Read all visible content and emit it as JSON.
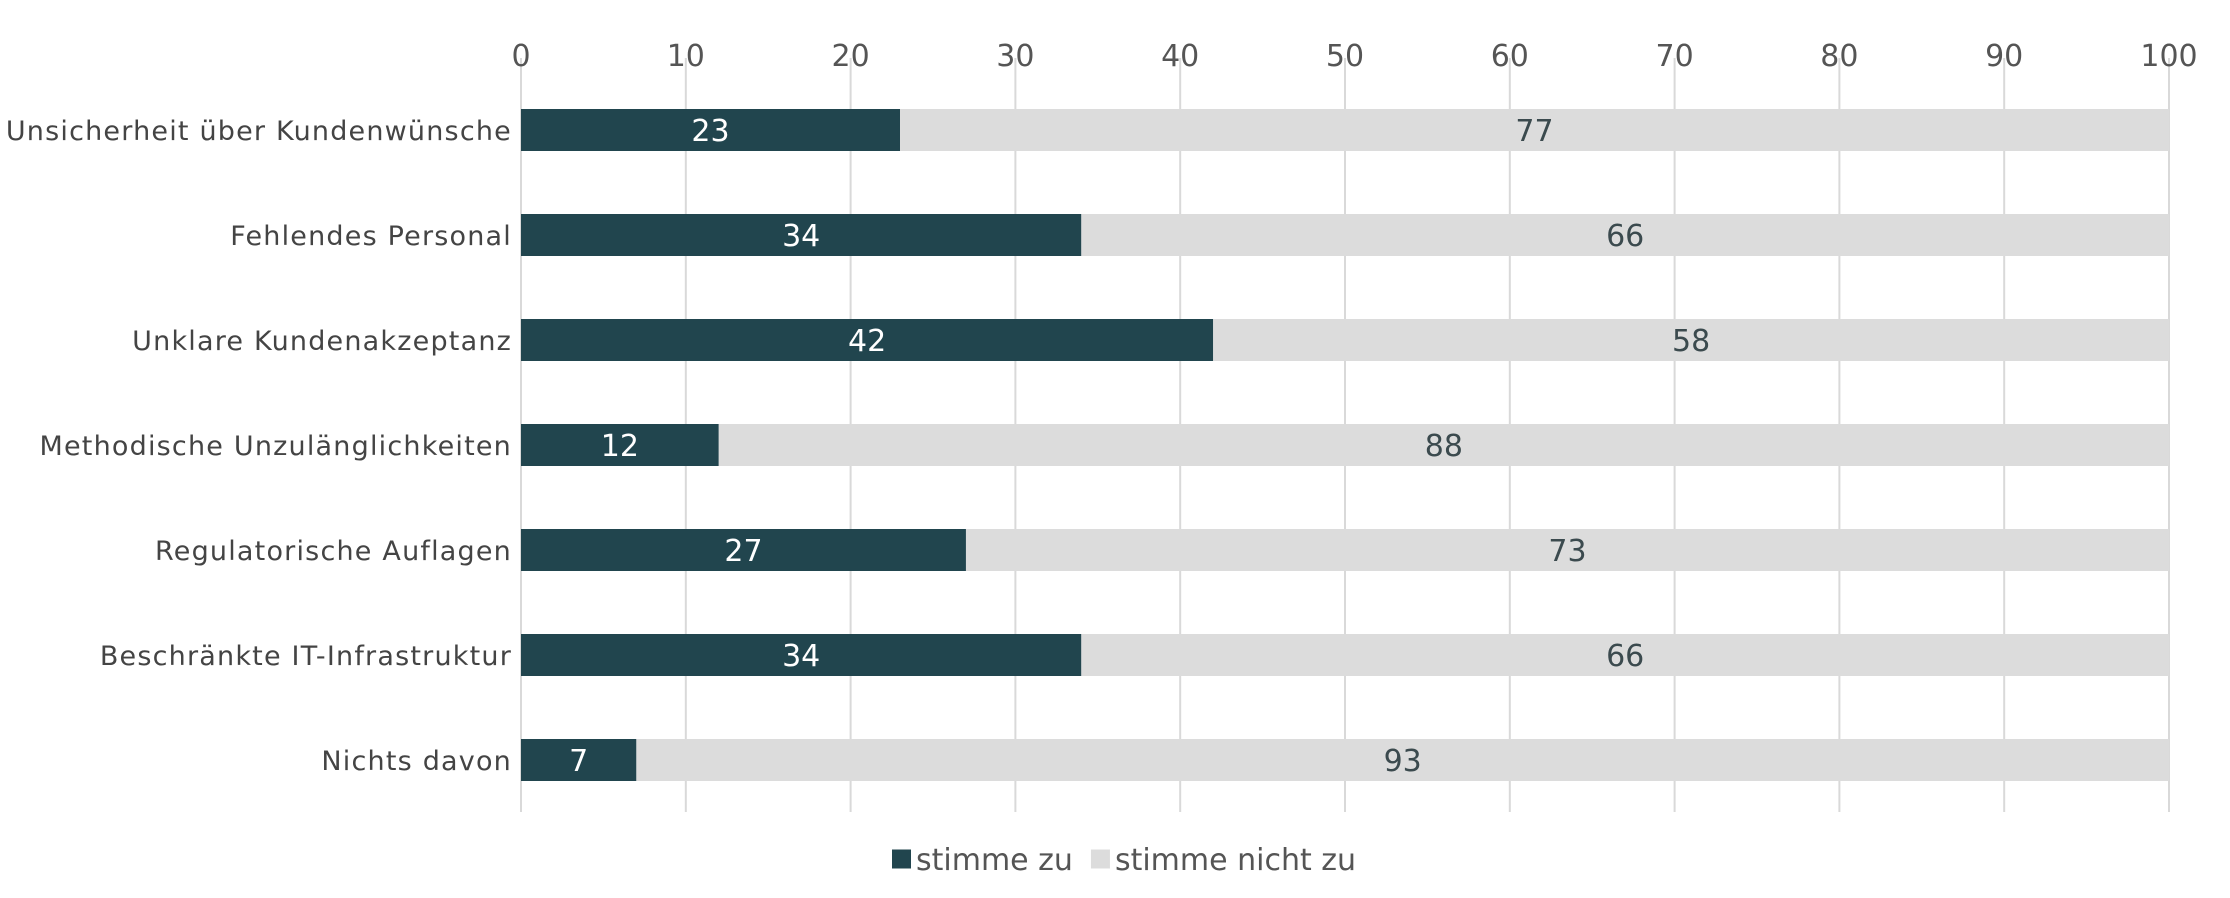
{
  "chart_data": {
    "type": "bar",
    "orientation": "horizontal",
    "stacked": true,
    "categories": [
      "Unsicherheit über Kundenwünsche",
      "Fehlendes Personal",
      "Unklare Kundenakzeptanz",
      "Methodische Unzulänglichkeiten",
      "Regulatorische Auflagen",
      "Beschränkte IT-Infrastruktur",
      "Nichts davon"
    ],
    "series": [
      {
        "name": "stimme zu",
        "color": "#21454e",
        "label_color": "#ffffff",
        "values": [
          23,
          34,
          42,
          12,
          27,
          34,
          7
        ]
      },
      {
        "name": "stimme nicht zu",
        "color": "#dcdcdc",
        "label_color": "#3b4a4e",
        "values": [
          77,
          66,
          58,
          88,
          73,
          66,
          93
        ]
      }
    ],
    "x_ticks": [
      "0",
      "10",
      "20",
      "30",
      "40",
      "50",
      "60",
      "70",
      "80",
      "90",
      "100"
    ],
    "xlim": [
      0,
      100
    ],
    "x_axis_position": "top",
    "grid": true,
    "legend_position": "bottom"
  }
}
